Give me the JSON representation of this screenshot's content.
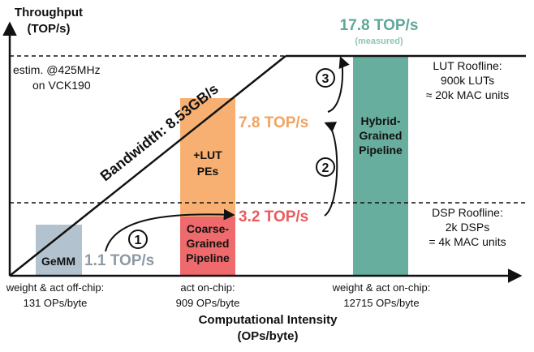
{
  "chart_data": {
    "type": "bar",
    "title": "",
    "ylabel": [
      "Throughput",
      "(TOP/s)"
    ],
    "xlabel": [
      "Computational Intensity",
      "(OPs/byte)"
    ],
    "x_ticks": [
      {
        "id": "offchip",
        "lines": [
          "weight & act off-chip:",
          "131 OPs/byte"
        ]
      },
      {
        "id": "actonchip",
        "lines": [
          "act on-chip:",
          "909 OPs/byte"
        ]
      },
      {
        "id": "allonchip",
        "lines": [
          "weight & act on-chip:",
          "12715 OPs/byte"
        ]
      }
    ],
    "bandwidth_label": "Bandwidth: 8.53GB/s",
    "ceilings": [
      {
        "id": "lut",
        "lines": [
          "LUT Roofline:",
          "900k LUTs",
          "≈ 20k MAC units"
        ],
        "style": "solid"
      },
      {
        "id": "dsp",
        "lines": [
          "DSP Roofline:",
          "2k DSPs",
          "= 4k MAC units"
        ],
        "style": "dashed"
      },
      {
        "id": "estim",
        "lines": [
          "estim. @425MHz",
          "on VCK190"
        ],
        "style": "dashed"
      }
    ],
    "bars": [
      {
        "id": "gemm",
        "lines": [
          "GeMM"
        ],
        "value": 1.1,
        "value_label": "1.1 TOP/s",
        "color": "#b3c2cf",
        "value_color": "#8d9aa6"
      },
      {
        "id": "coarse",
        "lines": [
          "Coarse-",
          "Grained",
          "Pipeline"
        ],
        "value": 3.2,
        "value_label": "3.2 TOP/s",
        "color": "#ee6a6c",
        "value_color": "#ea5a5e"
      },
      {
        "id": "lutpe",
        "lines": [
          "+LUT",
          "PEs"
        ],
        "value": 7.8,
        "value_label": "7.8 TOP/s",
        "color": "#f7b072",
        "value_color": "#f0a460"
      },
      {
        "id": "hybrid",
        "lines": [
          "Hybrid-",
          "Grained",
          "Pipeline"
        ],
        "value": 17.8,
        "value_label": "17.8 TOP/s",
        "sub_label": "(measured)",
        "color": "#68ae9e",
        "value_color": "#5fa898"
      }
    ],
    "steps": [
      "1",
      "2",
      "3"
    ]
  }
}
